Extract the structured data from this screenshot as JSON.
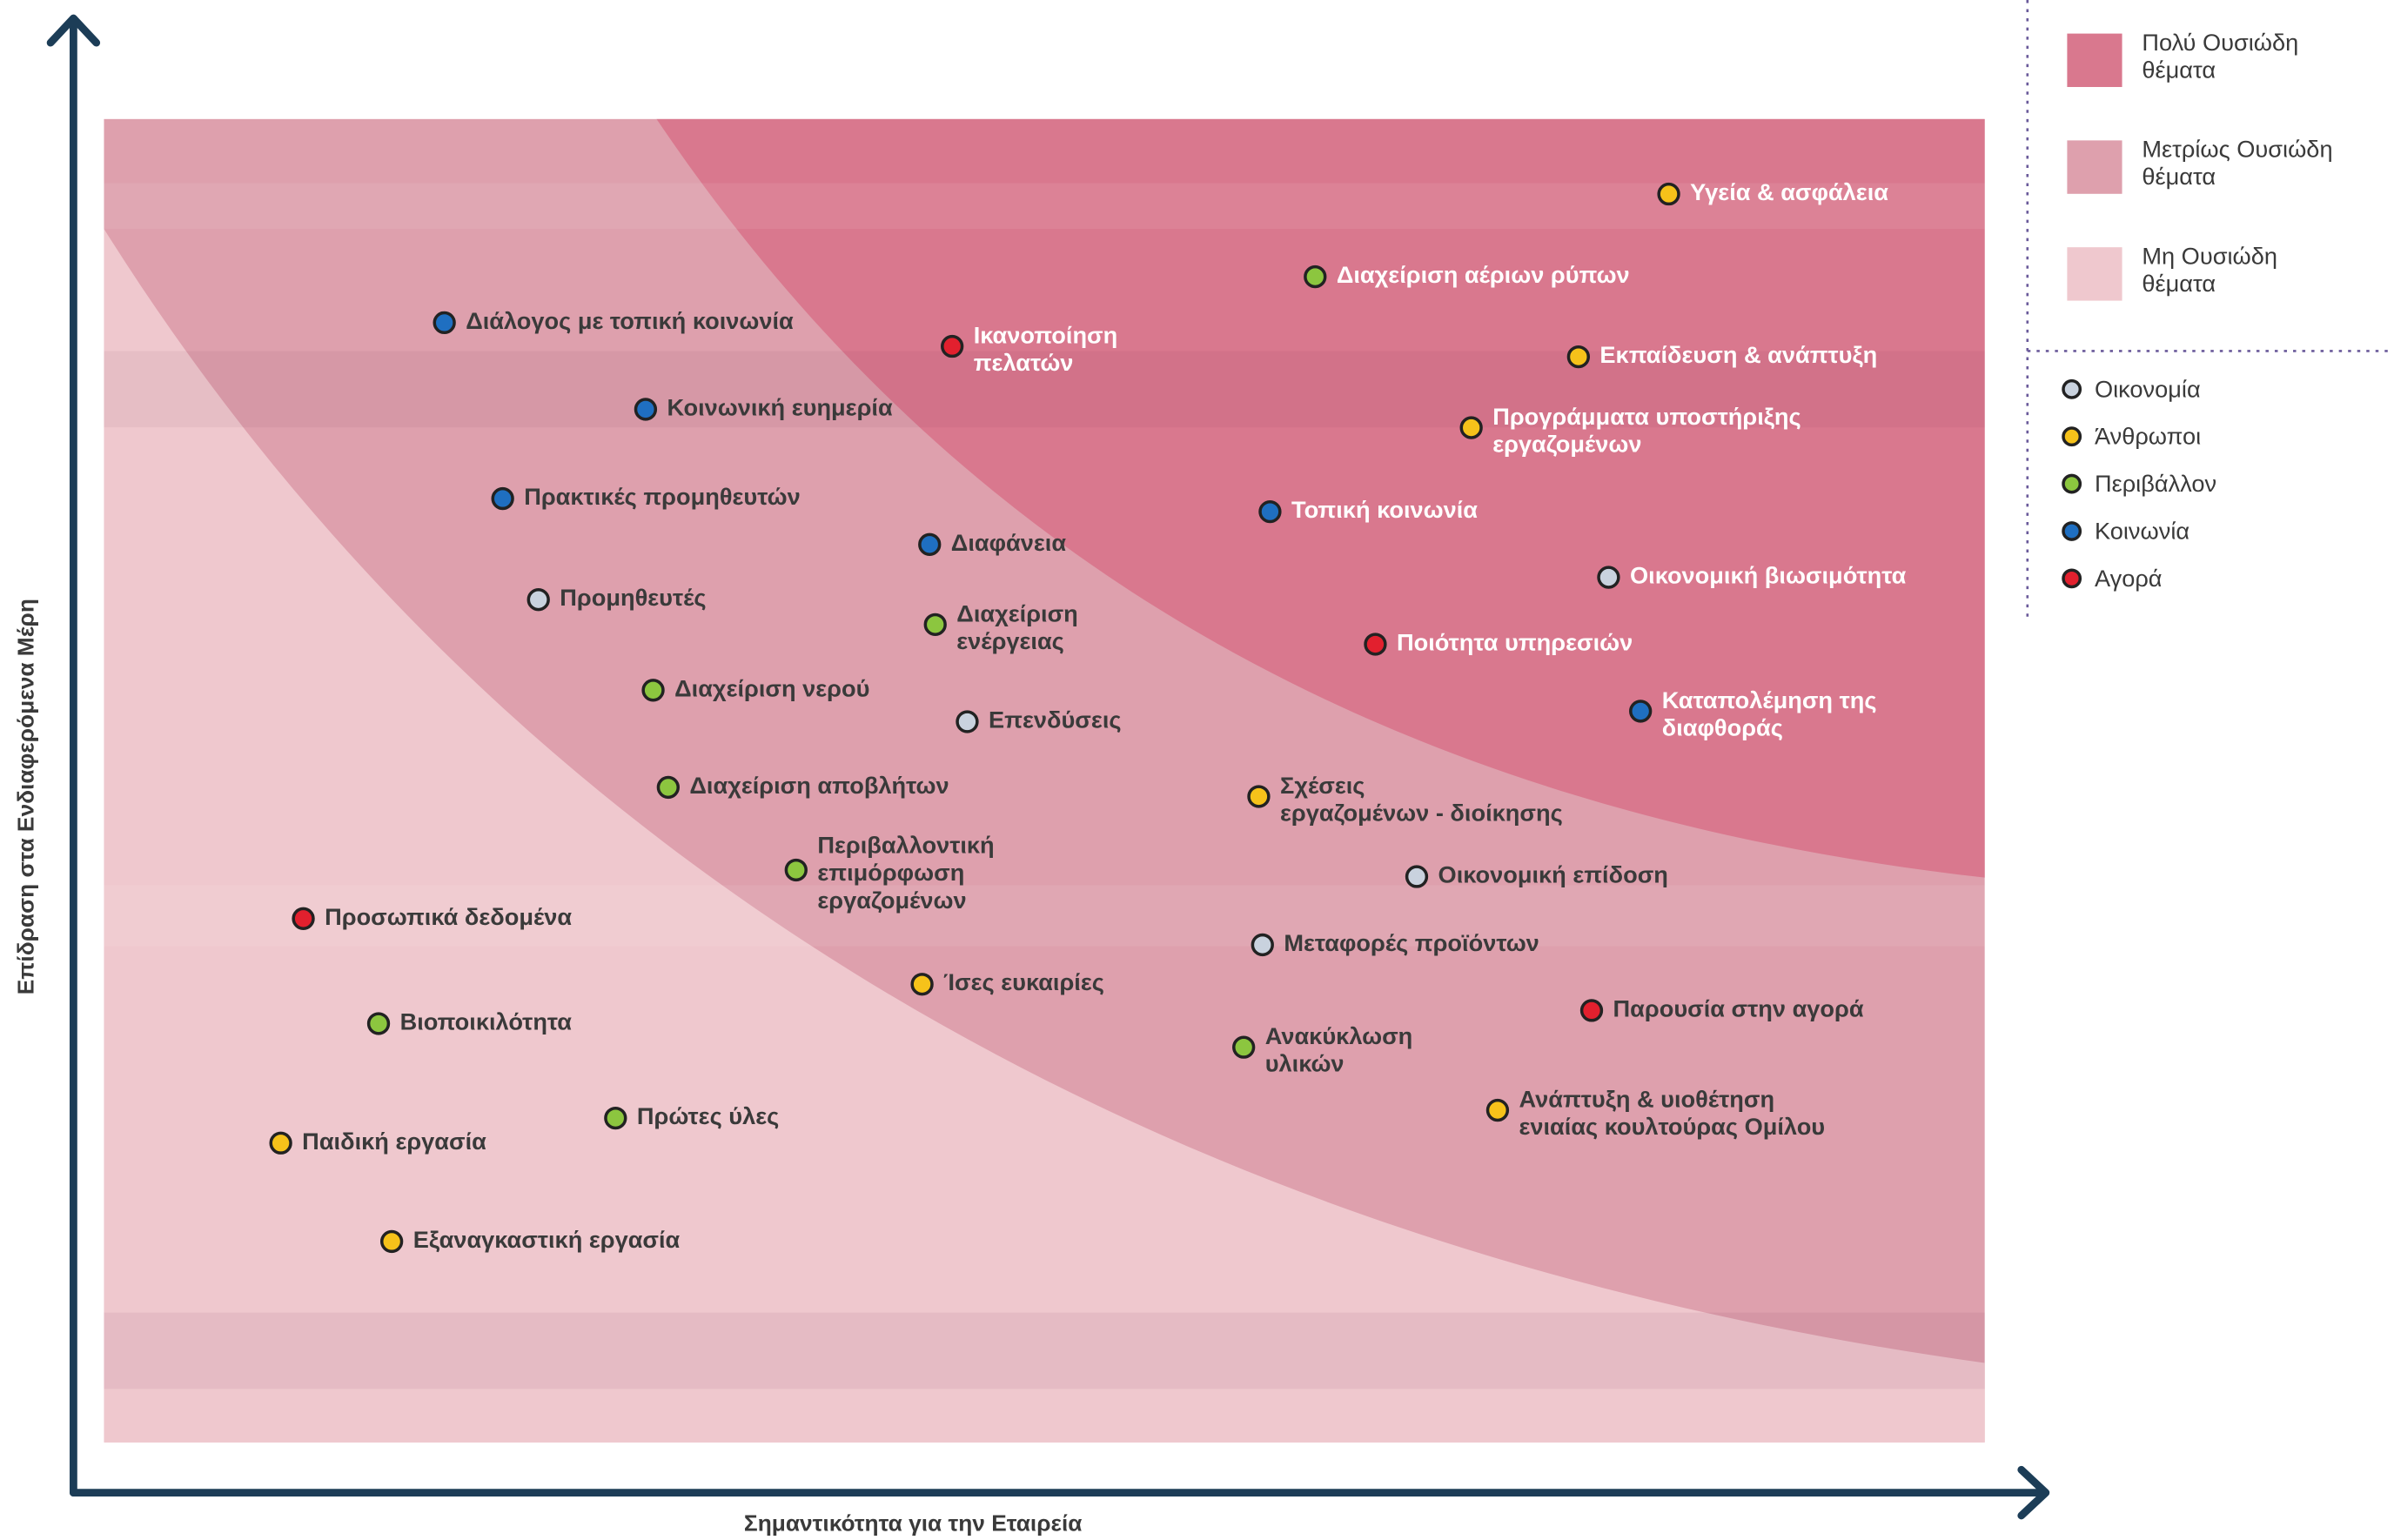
{
  "chart_data": {
    "type": "scatter",
    "x_label": "Σημαντικότητα για την Εταιρεία",
    "y_label": "Επίδραση στα Ενδιαφερόμενα Μέρη",
    "xlim": [
      0,
      100
    ],
    "ylim": [
      0,
      100
    ],
    "zones": [
      {
        "label": [
          "Πολύ Ουσιώδη",
          "θέματα"
        ],
        "color": "#d9788e"
      },
      {
        "label": [
          "Μετρίως Ουσιώδη",
          "θέματα"
        ],
        "color": "#dea0ad"
      },
      {
        "label": [
          "Μη Ουσιώδη",
          "θέματα"
        ],
        "color": "#efc8ce"
      }
    ],
    "series": [
      {
        "name": "Οικονομία",
        "color": "#c9d2de",
        "x": [
          80.0,
          23.1,
          45.9,
          69.8,
          61.6
        ],
        "y": [
          65.9,
          64.2,
          54.9,
          43.1,
          37.9
        ],
        "labels": [
          [
            "Οικονομική βιωσιμότητα"
          ],
          [
            "Προμηθευτές"
          ],
          [
            "Επενδύσεις"
          ],
          [
            "Οικονομική επίδοση"
          ],
          [
            "Μεταφορές προϊόντων"
          ]
        ]
      },
      {
        "name": "Άνθρωποι",
        "color": "#f6c21a",
        "x": [
          83.2,
          78.4,
          72.7,
          61.4,
          43.5,
          74.1,
          9.4,
          15.3
        ],
        "y": [
          95.1,
          82.7,
          77.3,
          49.2,
          34.9,
          25.3,
          22.8,
          15.3
        ],
        "labels": [
          [
            "Υγεία & ασφάλεια"
          ],
          [
            "Εκπαίδευση & ανάπτυξη"
          ],
          [
            "Προγράμματα υποστήριξης",
            "εργαζομένων"
          ],
          [
            "Σχέσεις",
            "εργαζομένων - διοίκησης"
          ],
          [
            "Ίσες ευκαιρίες"
          ],
          [
            "Ανάπτυξη & υιοθέτηση",
            "ενιαίας κουλτούρας Ομίλου"
          ],
          [
            "Παιδική εργασία"
          ],
          [
            "Εξαναγκαστική εργασία"
          ]
        ]
      },
      {
        "name": "Περιβάλλον",
        "color": "#8cc63f",
        "x": [
          64.4,
          44.2,
          29.2,
          30.0,
          36.8,
          14.6,
          60.6,
          27.2
        ],
        "y": [
          88.8,
          62.3,
          57.3,
          49.9,
          43.6,
          31.9,
          30.1,
          24.7
        ],
        "labels": [
          [
            "Διαχείριση αέριων ρύπων"
          ],
          [
            "Διαχείριση",
            "ενέργειας"
          ],
          [
            "Διαχείριση νερού"
          ],
          [
            "Διαχείριση αποβλήτων"
          ],
          [
            "Περιβαλλοντική",
            "επιμόρφωση",
            "εργαζομένων"
          ],
          [
            "Βιοποικιλότητα"
          ],
          [
            "Ανακύκλωση",
            "υλικών"
          ],
          [
            "Πρώτες ύλες"
          ]
        ]
      },
      {
        "name": "Κοινωνία",
        "color": "#1f6fc1",
        "x": [
          18.1,
          28.8,
          21.2,
          62.0,
          43.9,
          81.7
        ],
        "y": [
          85.3,
          78.7,
          71.9,
          70.9,
          68.4,
          55.7
        ],
        "labels": [
          [
            "Διάλογος με τοπική κοινωνία"
          ],
          [
            "Κοινωνική ευημερία"
          ],
          [
            "Πρακτικές προμηθευτών"
          ],
          [
            "Τοπική κοινωνία"
          ],
          [
            "Διαφάνεια"
          ],
          [
            "Καταπολέμηση της",
            "διαφθοράς"
          ]
        ]
      },
      {
        "name": "Αγορά",
        "color": "#e2202e",
        "x": [
          45.1,
          67.6,
          10.6,
          79.1
        ],
        "y": [
          83.5,
          60.8,
          39.9,
          32.9
        ],
        "labels": [
          [
            "Ικανοποίηση",
            "πελατών"
          ],
          [
            "Ποιότητα υπηρεσιών"
          ],
          [
            "Προσωπικά δεδομένα"
          ],
          [
            "Παρουσία στην αγορά"
          ]
        ]
      }
    ]
  }
}
